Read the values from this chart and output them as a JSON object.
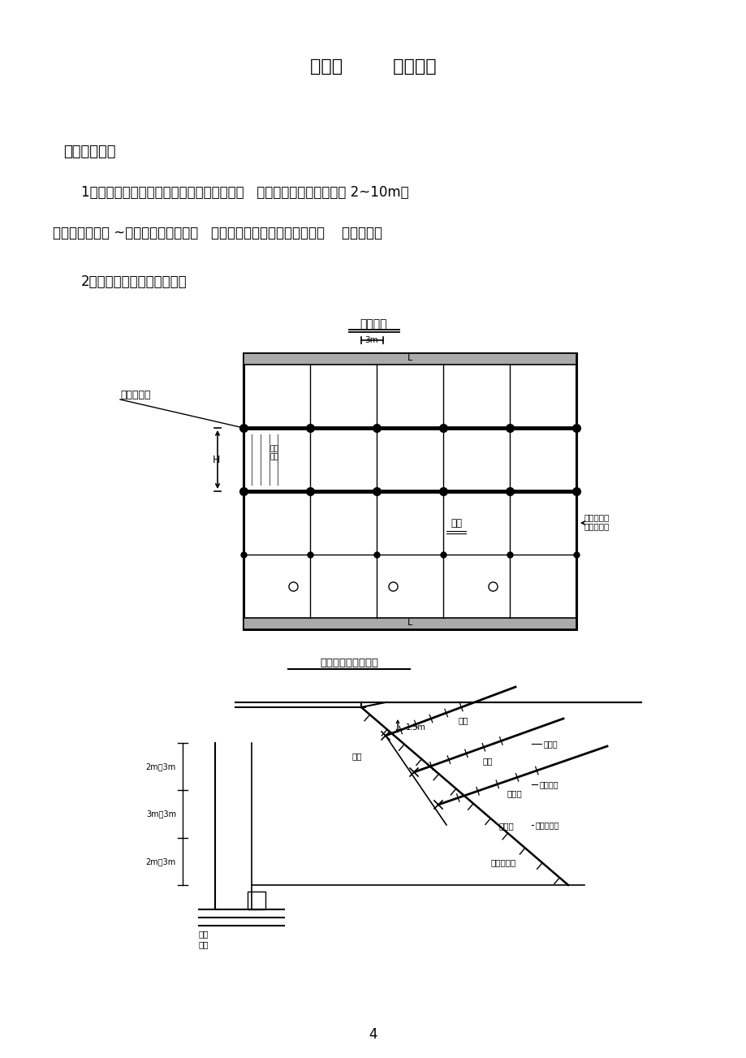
{
  "bg_color": "#ffffff",
  "title": "第二章        工程概况",
  "section1": "一、工程概况",
  "para1": "1、本段挖方边坡地质覆盖层多为粉质粘土、   含砂低液限粘土，厚度为 2~10m，",
  "para2": "以下为白垩系强 ~中风化泥质粉砂岩、   砂岩，各段岩层产状角度为同，    为切层坡。",
  "section2": "2、锚杆格梁护坡设计简图：",
  "diagram1_title": "放工平图",
  "diagram2_title": "锚杆框架护坡断面图",
  "page_number": "4"
}
